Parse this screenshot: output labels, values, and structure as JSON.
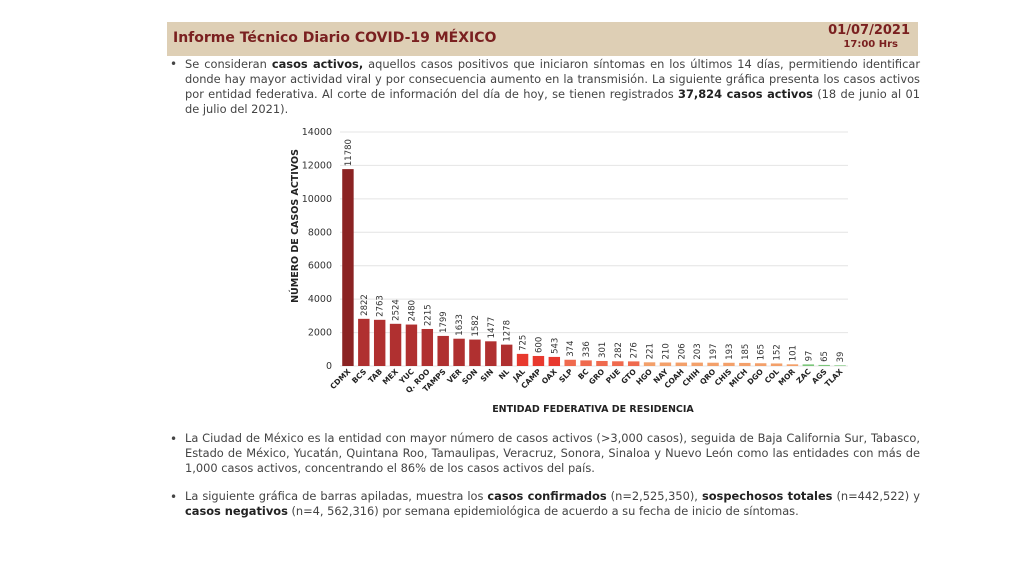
{
  "header": {
    "title": "Informe Técnico Diario COVID-19 MÉXICO",
    "date": "01/07/2021",
    "time": "17:00 Hrs"
  },
  "bullets": {
    "symbol": "•",
    "p1": {
      "t1": "Se consideran ",
      "b1": "casos activos,",
      "t2": " aquellos casos positivos que iniciaron síntomas en los últimos 14 días, permitiendo identificar donde hay mayor actividad viral y por consecuencia aumento en la transmisión. La siguiente gráfica presenta los casos activos por entidad federativa. Al corte de información del día de hoy, se tienen registrados ",
      "b2": "37,824 casos activos",
      "t3": " (18 de junio al 01 de julio del 2021)."
    },
    "p2": "La Ciudad de México es la entidad con mayor número de casos activos (>3,000 casos), seguida de Baja California Sur, Tabasco, Estado de México, Yucatán, Quintana Roo, Tamaulipas, Veracruz, Sonora, Sinaloa y Nuevo León como las entidades con más de 1,000 casos activos, concentrando el 86% de los casos activos del país.",
    "p3": {
      "t1": "La siguiente gráfica de barras apiladas, muestra los ",
      "b1": "casos confirmados",
      "t2": " (n=2,525,350), ",
      "b2": "sospechosos totales",
      "t3": " (n=442,522) y ",
      "b3": "casos negativos",
      "t4": " (n=4, 562,316) por semana epidemiológica de acuerdo a su fecha de inicio de síntomas."
    }
  },
  "chart_data": {
    "type": "bar",
    "title": "",
    "xlabel": "ENTIDAD FEDERATIVA DE RESIDENCIA",
    "ylabel": "NÚMERO DE CASOS ACTIVOS",
    "ylim": [
      0,
      14000
    ],
    "yticks": [
      0,
      2000,
      4000,
      6000,
      8000,
      10000,
      12000,
      14000
    ],
    "grid": true,
    "categories": [
      "CDMX",
      "BCS",
      "TAB",
      "MEX",
      "YUC",
      "Q. ROO",
      "TAMPS",
      "VER",
      "SON",
      "SIN",
      "NL",
      "JAL",
      "CAMP",
      "OAX",
      "SLP",
      "BC",
      "GRO",
      "PUE",
      "GTO",
      "HGO",
      "NAY",
      "COAH",
      "CHIH",
      "QRO",
      "CHIS",
      "MICH",
      "DGO",
      "COL",
      "MOR",
      "ZAC",
      "AGS",
      "TLAX"
    ],
    "values": [
      11780,
      2822,
      2763,
      2524,
      2480,
      2215,
      1799,
      1633,
      1582,
      1477,
      1278,
      725,
      600,
      543,
      374,
      336,
      301,
      282,
      276,
      221,
      210,
      206,
      203,
      197,
      193,
      185,
      165,
      152,
      101,
      97,
      65,
      39
    ],
    "colors": [
      "#8b2323",
      "#b03030",
      "#b03030",
      "#b03030",
      "#b03030",
      "#b03030",
      "#b03030",
      "#b03030",
      "#b03030",
      "#b03030",
      "#b03030",
      "#e8392e",
      "#e8392e",
      "#e8392e",
      "#ef6a4e",
      "#ef6a4e",
      "#ef6a4e",
      "#ef6a4e",
      "#ef6a4e",
      "#f3a06a",
      "#f3a06a",
      "#f3a06a",
      "#f3a06a",
      "#f3a06a",
      "#f3a06a",
      "#f3a06a",
      "#f3a06a",
      "#f3a06a",
      "#f3a06a",
      "#7bc67a",
      "#7bc67a",
      "#7bc67a"
    ]
  }
}
